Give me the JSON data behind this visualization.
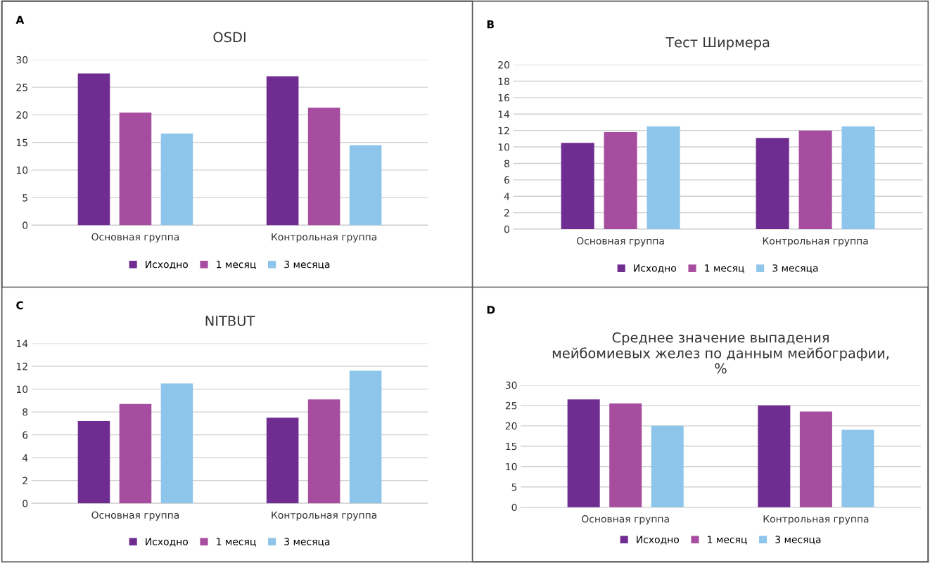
{
  "chart_data": [
    {
      "type": "bar",
      "title": "OSDI",
      "annotations": [
        "A"
      ],
      "categories": [
        "Основная группа",
        "Контрольная группа"
      ],
      "series": [
        {
          "name": "Исходно",
          "color": "#6f2c91",
          "values": [
            27.5,
            27.0
          ]
        },
        {
          "name": "1 месяц",
          "color": "#a64d9f",
          "values": [
            20.4,
            21.3
          ]
        },
        {
          "name": "3 месяца",
          "color": "#8ec5ea",
          "values": [
            16.6,
            14.5
          ]
        }
      ],
      "ylim": [
        0,
        30
      ],
      "yticks": [
        0,
        5,
        10,
        15,
        20,
        25,
        30
      ],
      "grid": "y",
      "legend": "bottom"
    },
    {
      "type": "bar",
      "title": "Тест Ширмера",
      "annotations": [
        "B"
      ],
      "categories": [
        "Основная группа",
        "Контрольная группа"
      ],
      "series": [
        {
          "name": "Исходно",
          "color": "#6f2c91",
          "values": [
            10.5,
            11.1
          ]
        },
        {
          "name": "1 месяц",
          "color": "#a64d9f",
          "values": [
            11.8,
            12.0
          ]
        },
        {
          "name": "3 месяца",
          "color": "#8ec5ea",
          "values": [
            12.5,
            12.5
          ]
        }
      ],
      "ylim": [
        0,
        20
      ],
      "yticks": [
        0,
        2,
        4,
        6,
        8,
        10,
        12,
        14,
        16,
        18,
        20
      ],
      "grid": "y",
      "legend": "bottom"
    },
    {
      "type": "bar",
      "title": "NITBUT",
      "annotations": [
        "C"
      ],
      "categories": [
        "Основная группа",
        "Контрольная группа"
      ],
      "series": [
        {
          "name": "Исходно",
          "color": "#6f2c91",
          "values": [
            7.2,
            7.5
          ]
        },
        {
          "name": "1 месяц",
          "color": "#a64d9f",
          "values": [
            8.7,
            9.1
          ]
        },
        {
          "name": "3 месяца",
          "color": "#8ec5ea",
          "values": [
            10.5,
            11.6
          ]
        }
      ],
      "ylim": [
        0,
        14
      ],
      "yticks": [
        0,
        2,
        4,
        6,
        8,
        10,
        12,
        14
      ],
      "grid": "y",
      "legend": "bottom"
    },
    {
      "type": "bar",
      "title": "Среднее значение выпадения\nмейбомиевых желез по данным мейбографии,\n%",
      "annotations": [
        "D"
      ],
      "categories": [
        "Основная группа",
        "Контрольная группа"
      ],
      "series": [
        {
          "name": "Исходно",
          "color": "#6f2c91",
          "values": [
            26.5,
            25.0
          ]
        },
        {
          "name": "1 месяц",
          "color": "#a64d9f",
          "values": [
            25.5,
            23.5
          ]
        },
        {
          "name": "3 месяца",
          "color": "#8ec5ea",
          "values": [
            20.0,
            19.0
          ]
        }
      ],
      "ylim": [
        0,
        30
      ],
      "yticks": [
        0,
        5,
        10,
        15,
        20,
        25,
        30
      ],
      "grid": "y",
      "legend": "bottom"
    }
  ]
}
